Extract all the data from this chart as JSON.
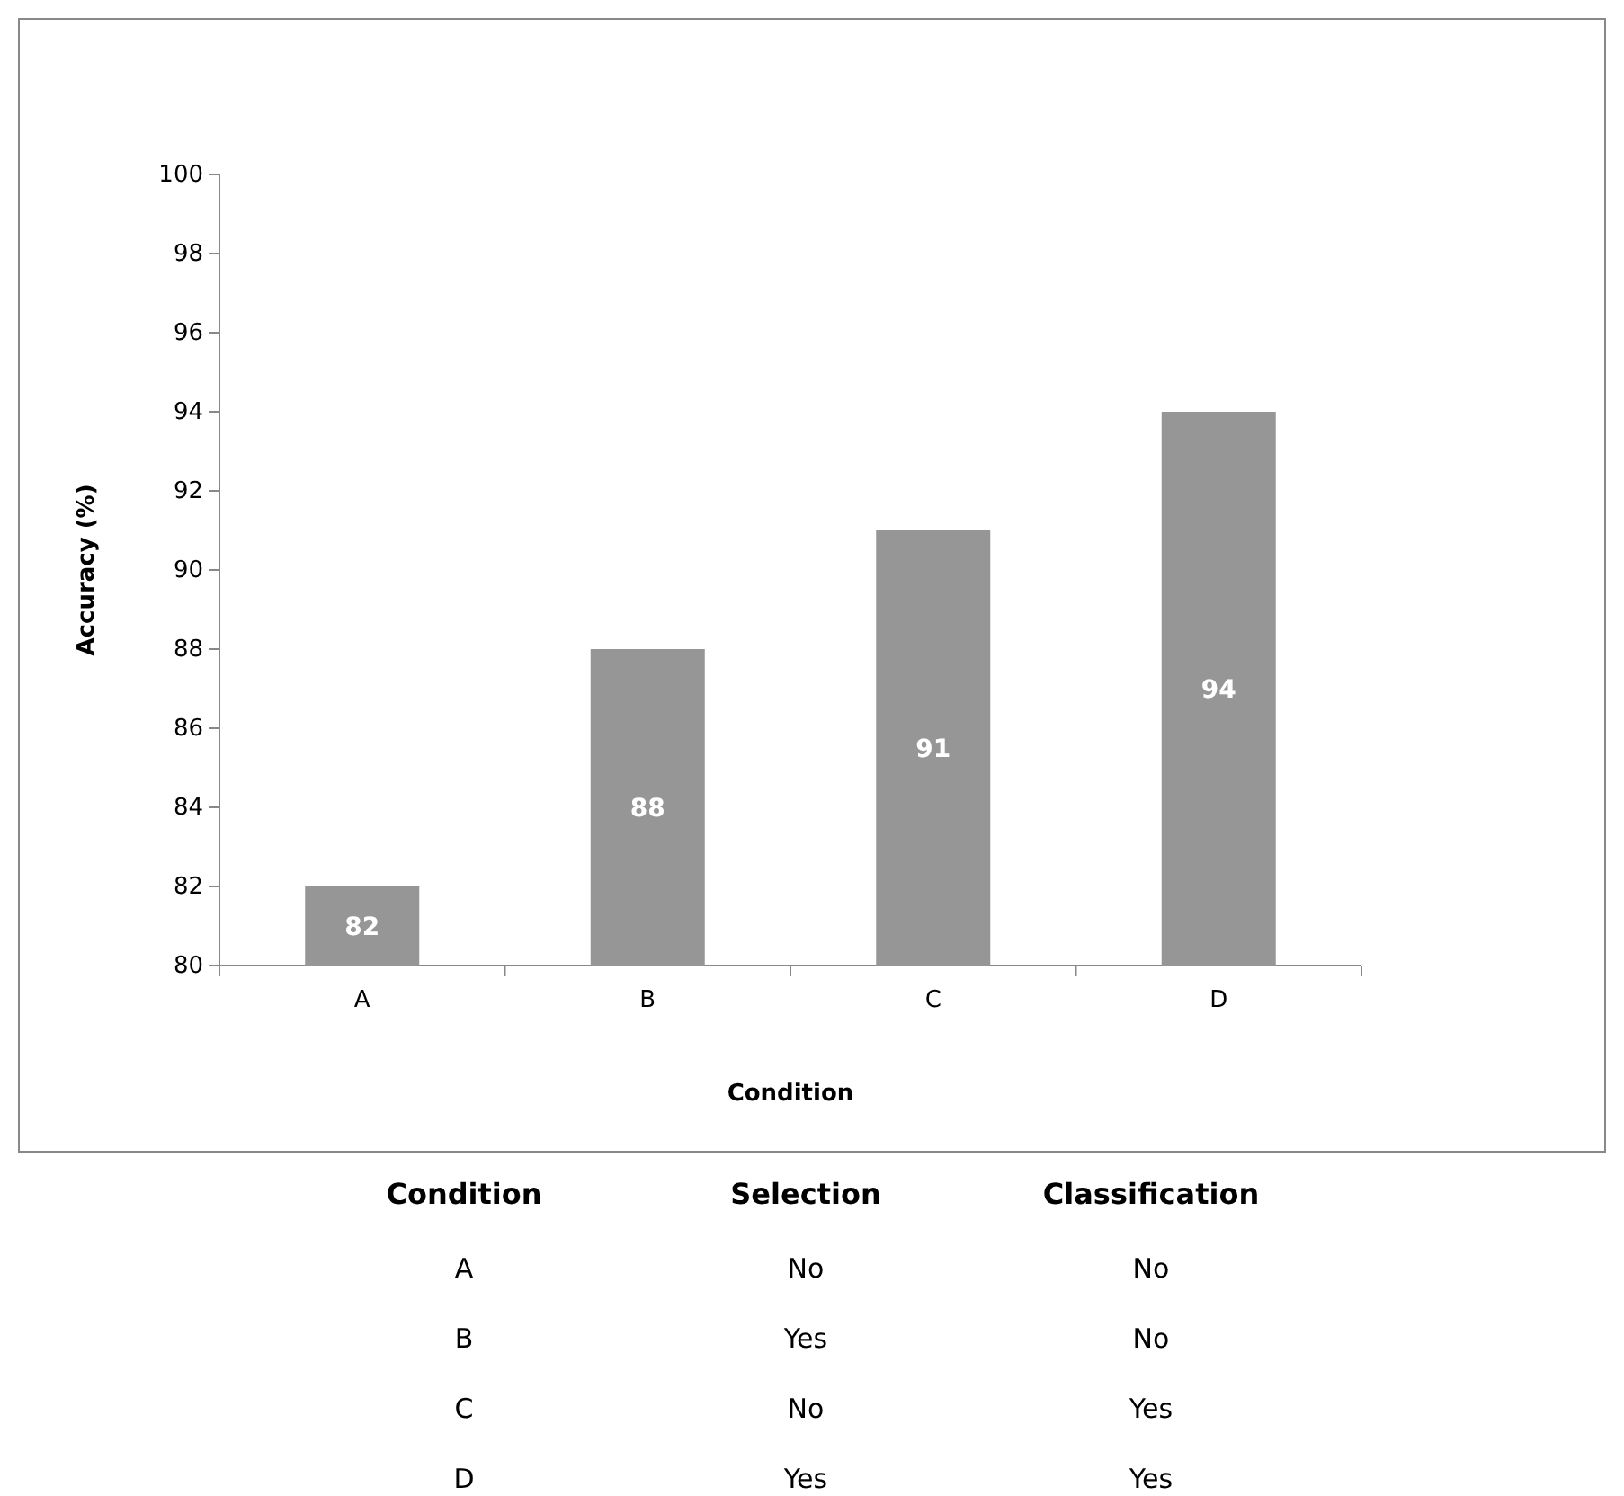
{
  "chart_data": {
    "type": "bar",
    "xlabel": "Condition",
    "ylabel": "Accuracy (%)",
    "categories": [
      "A",
      "B",
      "C",
      "D"
    ],
    "values": [
      82,
      88,
      91,
      94
    ],
    "color": "#969696",
    "ylim": [
      80,
      100
    ],
    "yticks": [
      80,
      82,
      84,
      86,
      88,
      90,
      92,
      94,
      96,
      98,
      100
    ],
    "data_labels": true,
    "annotations": [
      "Condition",
      "Selection",
      "Classification",
      "A",
      "No",
      "No",
      "B",
      "Yes",
      "No",
      "C",
      "No",
      "Yes",
      "D",
      "Yes",
      "Yes"
    ]
  }
}
